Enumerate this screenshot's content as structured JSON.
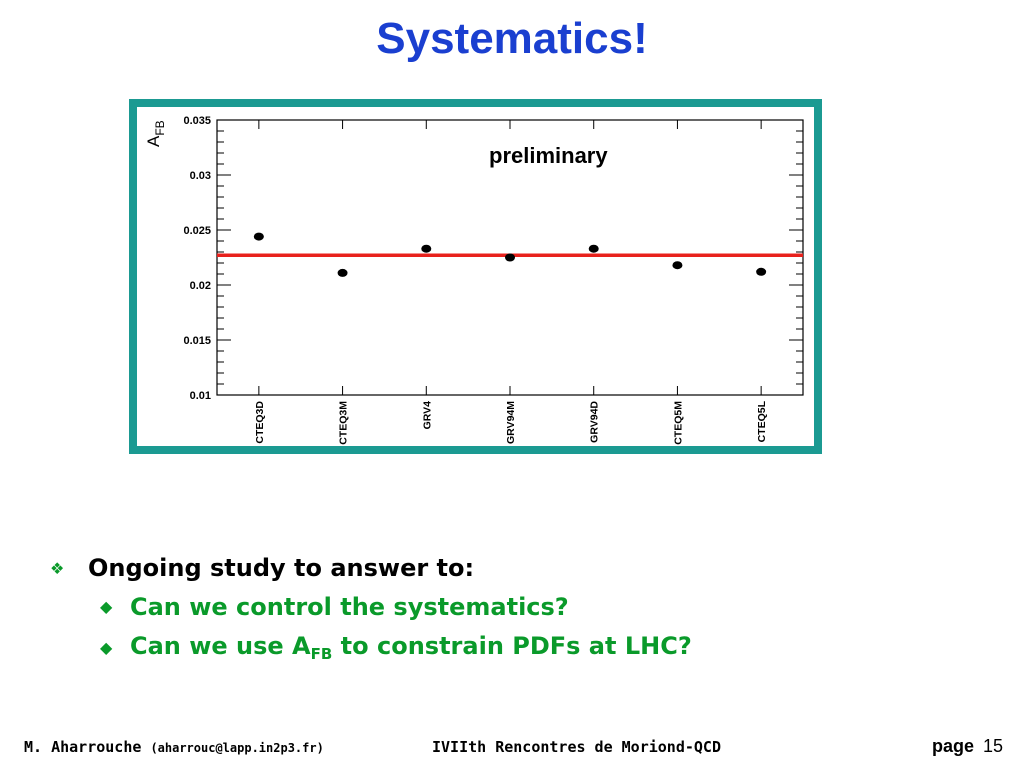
{
  "slide": {
    "title": "Systematics!",
    "bullets": {
      "main": "Ongoing study to answer to:",
      "sub1": "Can we control the systematics?",
      "sub2_pre": "Can we use A",
      "sub2_sub": "FB",
      "sub2_post": " to constrain PDFs at LHC?"
    },
    "footer": {
      "author": "M. Aharrouche",
      "email": "(aharrouc@lapp.in2p3.fr)",
      "conference": "IVIIth Rencontres de Moriond-QCD",
      "page_label": "page",
      "page_number": "15"
    },
    "colors": {
      "title": "#1a3fd0",
      "frame": "#1b9a92",
      "bullet_green": "#0a9a2a",
      "reference_line": "#e8211c"
    }
  },
  "chart_data": {
    "type": "scatter",
    "ylabel_main": "A",
    "ylabel_sub": "FB",
    "annotation": "preliminary",
    "categories": [
      "CTEQ3D",
      "CTEQ3M",
      "GRV4",
      "GRV94M",
      "GRV94D",
      "CTEQ5M",
      "CTEQ5L"
    ],
    "values": [
      0.0244,
      0.0211,
      0.0233,
      0.0225,
      0.0233,
      0.0218,
      0.0212
    ],
    "reference_line": 0.0227,
    "ylim": [
      0.01,
      0.035
    ],
    "yticks": [
      "0.01",
      "0.015",
      "0.02",
      "0.025",
      "0.03",
      "0.035"
    ],
    "grid": false
  }
}
